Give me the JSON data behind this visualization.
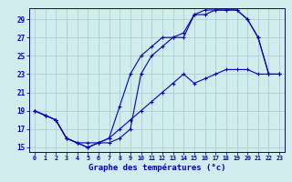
{
  "bg_color": "#d0ecec",
  "line_color": "#0000bb",
  "grid_color": "#a0cccc",
  "xlabel": "Graphe des températures (°c)",
  "xlim_min": -0.5,
  "xlim_max": 23.5,
  "ylim_min": 14.5,
  "ylim_max": 30.2,
  "xticks": [
    0,
    1,
    2,
    3,
    4,
    5,
    6,
    7,
    8,
    9,
    10,
    11,
    12,
    13,
    14,
    15,
    16,
    17,
    18,
    19,
    20,
    21,
    22,
    23
  ],
  "yticks": [
    15,
    17,
    19,
    21,
    23,
    25,
    27,
    29
  ],
  "line1_x": [
    0,
    1,
    2,
    3,
    4,
    5,
    6,
    7,
    8,
    9,
    10,
    11,
    12,
    13,
    14,
    15,
    16,
    17,
    18,
    19,
    20,
    21,
    22,
    23
  ],
  "line1_y": [
    19,
    18.5,
    18,
    16,
    15.5,
    15,
    15.5,
    16,
    19.5,
    23,
    25,
    26,
    27,
    27,
    27,
    29.5,
    30,
    30,
    30,
    30,
    29,
    27,
    23,
    23
  ],
  "line2_x": [
    0,
    1,
    2,
    3,
    4,
    5,
    6,
    7,
    8,
    9,
    10,
    11,
    12,
    13,
    14,
    15,
    16,
    17,
    18,
    19,
    20,
    21,
    22,
    23
  ],
  "line2_y": [
    19,
    18.5,
    18,
    16,
    15.5,
    15,
    15.5,
    15.5,
    16,
    17,
    23,
    25,
    26,
    27,
    27.5,
    29.5,
    29.5,
    30,
    30,
    30,
    29,
    27,
    23,
    23
  ],
  "line3_x": [
    0,
    1,
    2,
    3,
    4,
    5,
    6,
    7,
    8,
    9,
    10,
    11,
    12,
    13,
    14,
    15,
    16,
    17,
    18,
    19,
    20,
    21,
    22,
    23
  ],
  "line3_y": [
    19,
    18.5,
    18,
    16,
    15.5,
    15.5,
    15.5,
    16,
    17,
    18,
    19,
    20,
    21,
    22,
    23,
    22,
    22.5,
    23,
    23.5,
    23.5,
    23.5,
    23,
    23,
    23
  ]
}
